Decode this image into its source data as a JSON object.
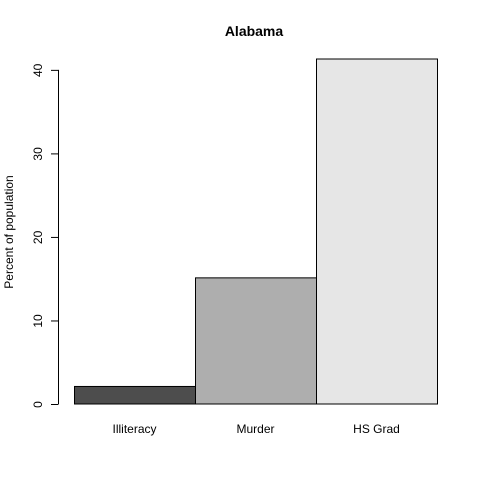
{
  "chart_data": {
    "type": "bar",
    "title": "Alabama",
    "xlabel": "",
    "ylabel": "Percent of population",
    "categories": [
      "Illiteracy",
      "Murder",
      "HS Grad"
    ],
    "values": [
      2.1,
      15.1,
      41.3
    ],
    "ylim": [
      0,
      41.3
    ],
    "yticks": [
      0,
      10,
      20,
      30,
      40
    ],
    "colors": [
      "#4d4d4d",
      "#aeaeae",
      "#e6e6e6"
    ],
    "grid": false,
    "legend": "none"
  }
}
